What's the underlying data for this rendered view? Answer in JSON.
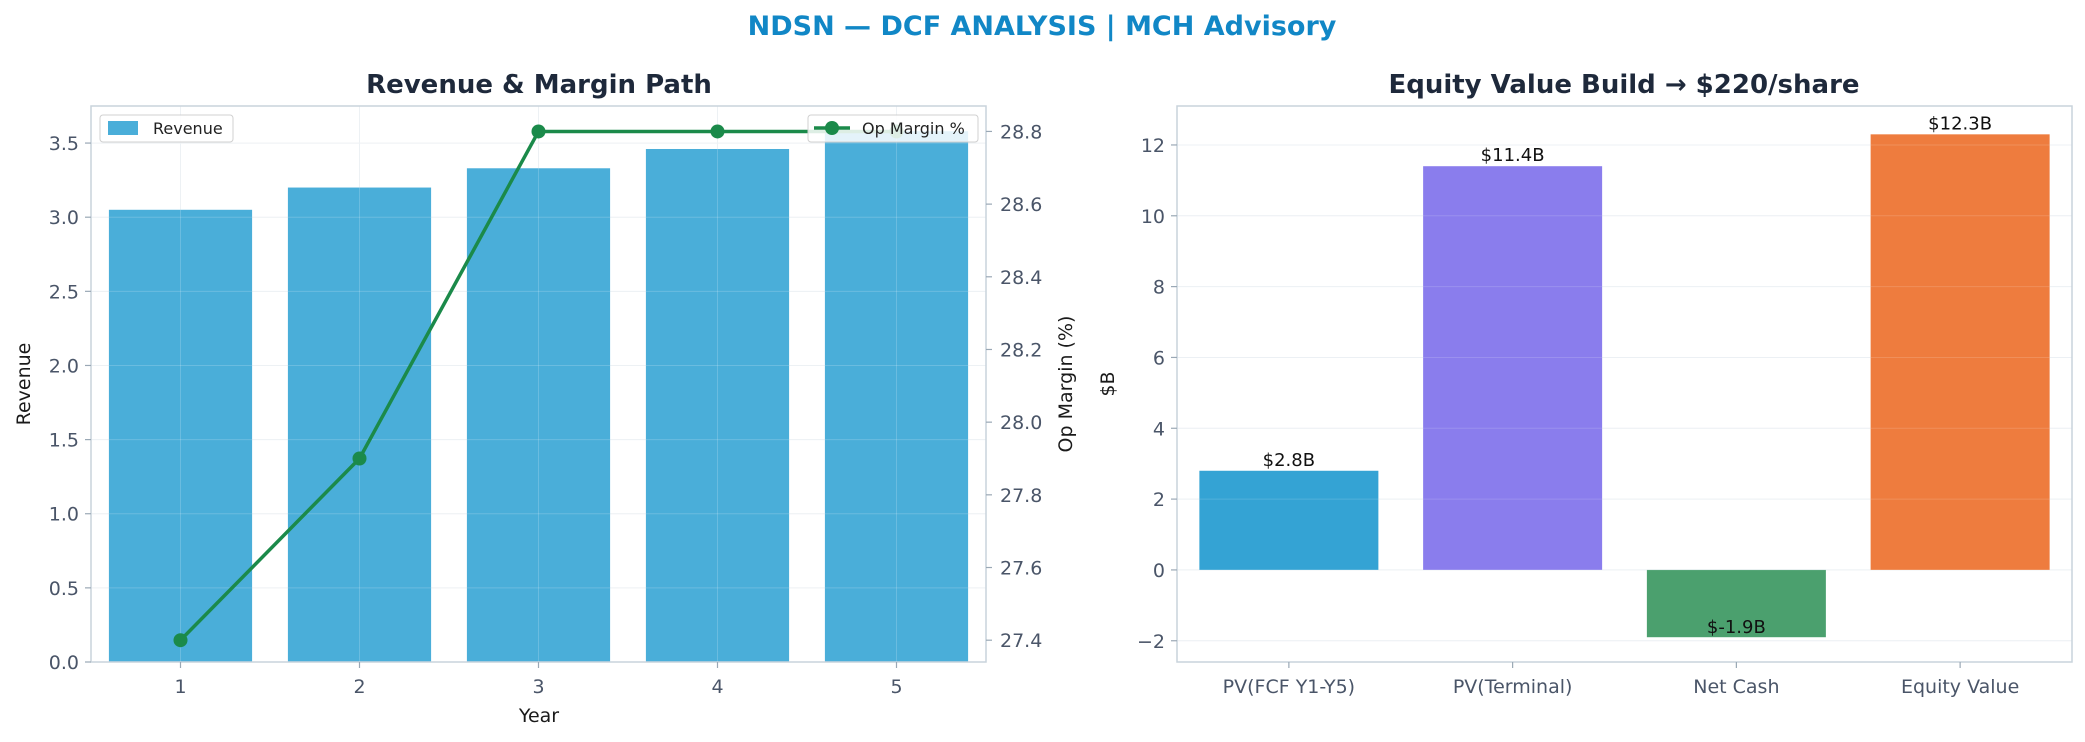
{
  "suptitle": "NDSN — DCF ANALYSIS | MCH Advisory",
  "colors": {
    "suptitle": "#1187c6",
    "revenue_bar": "#4aaed9",
    "margin_line": "#1b8a4a",
    "axis": "#c9d3dc",
    "grid": "#e9eef2"
  },
  "chart_data": [
    {
      "type": "bar+line",
      "title": "Revenue & Margin Path",
      "xlabel": "Year",
      "ylabel": "Revenue",
      "y2label": "Op Margin (%)",
      "categories": [
        "1",
        "2",
        "3",
        "4",
        "5"
      ],
      "ylim": [
        0,
        3.75
      ],
      "y_ticks": [
        "0.0",
        "0.5",
        "1.0",
        "1.5",
        "2.0",
        "2.5",
        "3.0",
        "3.5"
      ],
      "y2lim": [
        27.34,
        28.87
      ],
      "y2_ticks": [
        "27.4",
        "27.6",
        "27.8",
        "28.0",
        "28.2",
        "28.4",
        "28.6",
        "28.8"
      ],
      "series": [
        {
          "name": "Revenue",
          "type": "bar",
          "axis": "left",
          "values": [
            3.05,
            3.2,
            3.33,
            3.46,
            3.58
          ]
        },
        {
          "name": "Op Margin %",
          "type": "line",
          "axis": "right",
          "values": [
            27.4,
            27.9,
            28.8,
            28.8,
            28.8
          ]
        }
      ],
      "legend": [
        "upper-left",
        "upper-right"
      ],
      "grid": true
    },
    {
      "type": "bar",
      "title": "Equity Value Build → $220/share",
      "xlabel": "",
      "ylabel": "$B",
      "categories": [
        "PV(FCF Y1-Y5)",
        "PV(Terminal)",
        "Net Cash",
        "Equity Value"
      ],
      "values": [
        2.8,
        11.4,
        -1.9,
        12.3
      ],
      "data_labels": [
        "$2.8B",
        "$11.4B",
        "$-1.9B",
        "$12.3B"
      ],
      "colors": [
        "#34a3d4",
        "#8a7ded",
        "#4ba06e",
        "#ee7c3e"
      ],
      "ylim": [
        -2.6,
        13.1
      ],
      "y_ticks": [
        "−2",
        "0",
        "2",
        "4",
        "6",
        "8",
        "10",
        "12"
      ],
      "grid": true
    }
  ]
}
